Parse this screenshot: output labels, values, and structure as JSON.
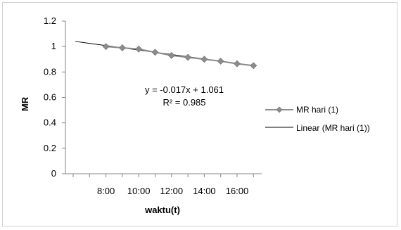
{
  "chart_data": {
    "type": "line",
    "title": "",
    "xlabel": "waktu(t)",
    "ylabel": "MR",
    "ylim": [
      0,
      1.2
    ],
    "yticks": [
      "0",
      "0.2",
      "0.4",
      "0.6",
      "0.8",
      "1",
      "1.2"
    ],
    "yticks_values": [
      0,
      0.2,
      0.4,
      0.6,
      0.8,
      1.0,
      1.2
    ],
    "xlim": [
      0,
      14
    ],
    "x_tick_labels": [
      "8:00",
      "10:00",
      "12:00",
      "14:00",
      "16:00"
    ],
    "x_tick_label_positions": [
      2,
      4,
      6,
      8,
      10
    ],
    "series": [
      {
        "name": "MR hari (1)",
        "color": "#8c8c8c",
        "marker": "diamond",
        "x": [
          2,
          3,
          4,
          5,
          6,
          7,
          8,
          9,
          10,
          11
        ],
        "values": [
          1.0,
          0.99,
          0.98,
          0.955,
          0.93,
          0.915,
          0.9,
          0.885,
          0.865,
          0.85
        ]
      }
    ],
    "trendline": {
      "name": "Linear (MR hari (1))",
      "color": "#000000",
      "x_start": 0,
      "x_end": 11,
      "slope": -0.017,
      "intercept": 1.061
    },
    "annotation": {
      "equation": "y = -0.017x + 1.061",
      "r2_label": "R² = 0.985"
    },
    "legend": {
      "placement": "right",
      "entries": [
        "MR hari (1)",
        "Linear (MR hari (1))"
      ]
    },
    "grid": false
  }
}
